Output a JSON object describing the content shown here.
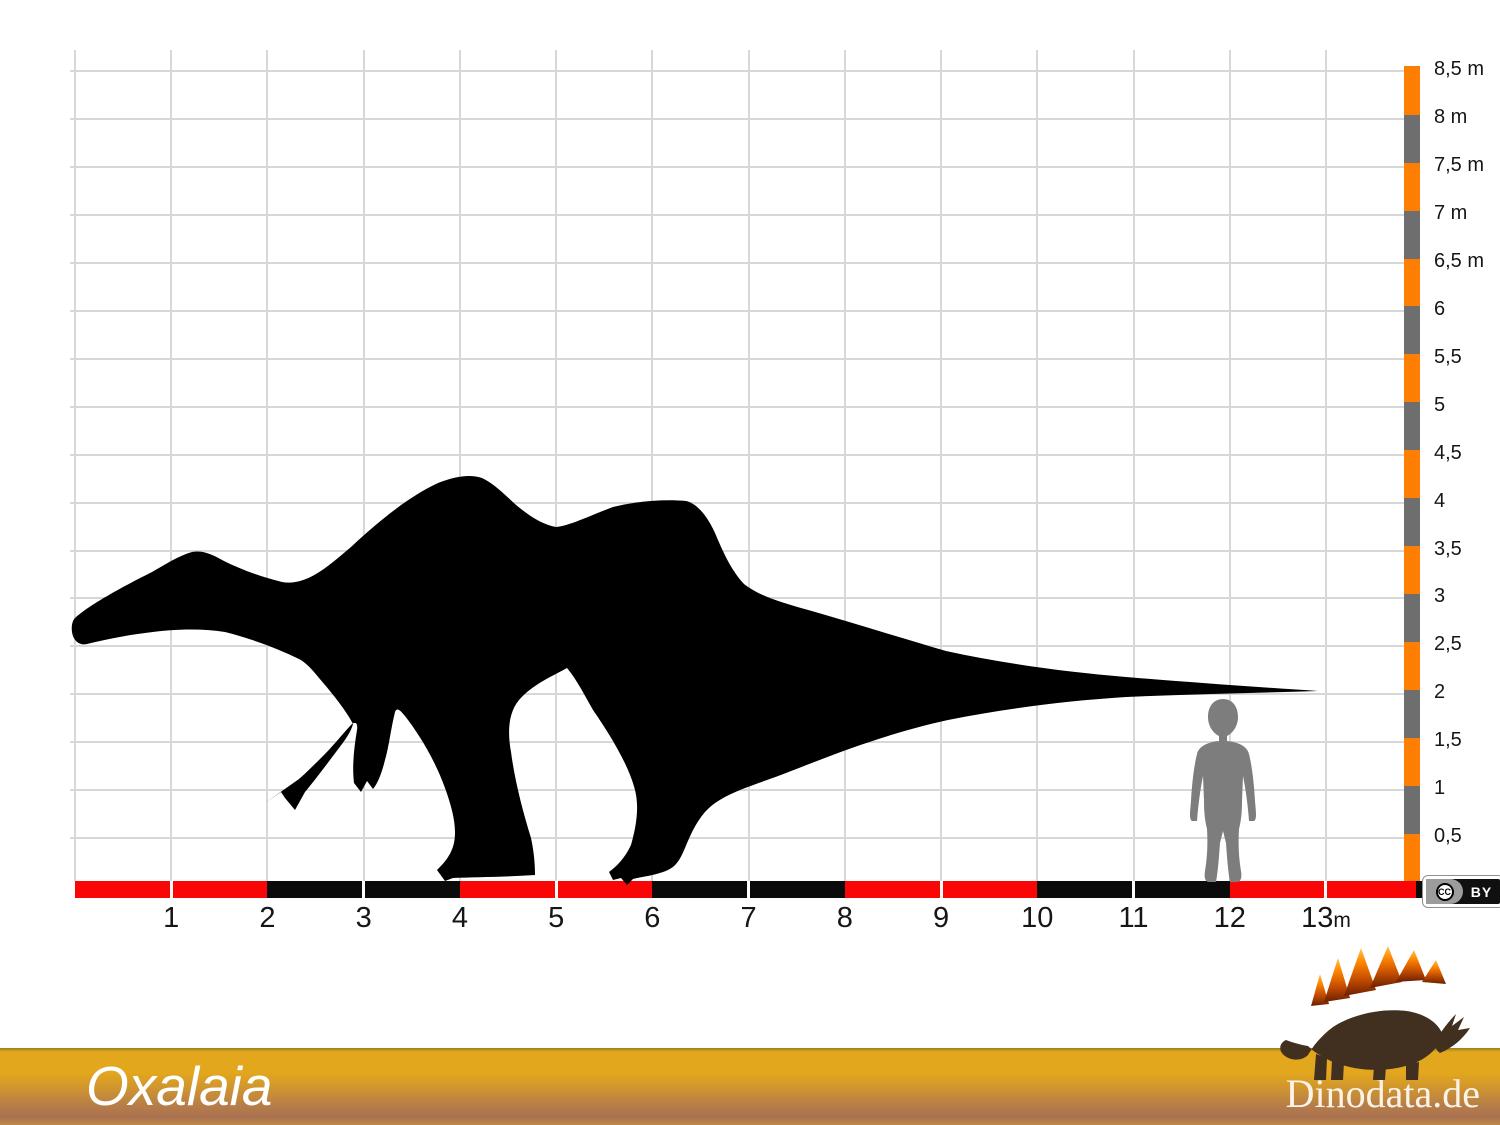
{
  "title": "Oxalaia",
  "branding": {
    "site": "Dinodata.de"
  },
  "license": {
    "cc": "CC",
    "by": "BY"
  },
  "x_axis": {
    "labels": [
      "1",
      "2",
      "3",
      "4",
      "5",
      "6",
      "7",
      "8",
      "9",
      "10",
      "11",
      "12",
      "13"
    ],
    "unit": "m"
  },
  "y_axis": {
    "labels": [
      "8,5 m",
      "8 m",
      "7,5 m",
      "7 m",
      "6,5 m",
      "6",
      "5,5",
      "5",
      "4,5",
      "4",
      "3,5",
      "3",
      "2,5",
      "2",
      "1,5",
      "1",
      "0,5"
    ]
  },
  "colors": {
    "grid": "#d7d7d7",
    "scale_red": "#f90606",
    "scale_black": "#0b0b0b",
    "scale_orange": "#fd7e02",
    "scale_gray": "#6e6e6e",
    "tick_white": "#ffffff",
    "silhouette": "#000000",
    "human": "#7d7d7d",
    "label": "#161616",
    "banner_top": "#e2a71c",
    "banner_bottom": "#aa7150"
  },
  "chart_data": {
    "type": "scale_comparison",
    "x_scale_m": {
      "min": 0,
      "max": 13,
      "step": 1
    },
    "y_scale_m": {
      "min": 0,
      "max": 8.5,
      "step": 0.5
    },
    "figures": [
      {
        "name": "Oxalaia silhouette",
        "length_m": 13,
        "max_height_m": 4.2
      },
      {
        "name": "Human silhouette",
        "height_m": 1.9,
        "position_m": 12
      }
    ]
  }
}
